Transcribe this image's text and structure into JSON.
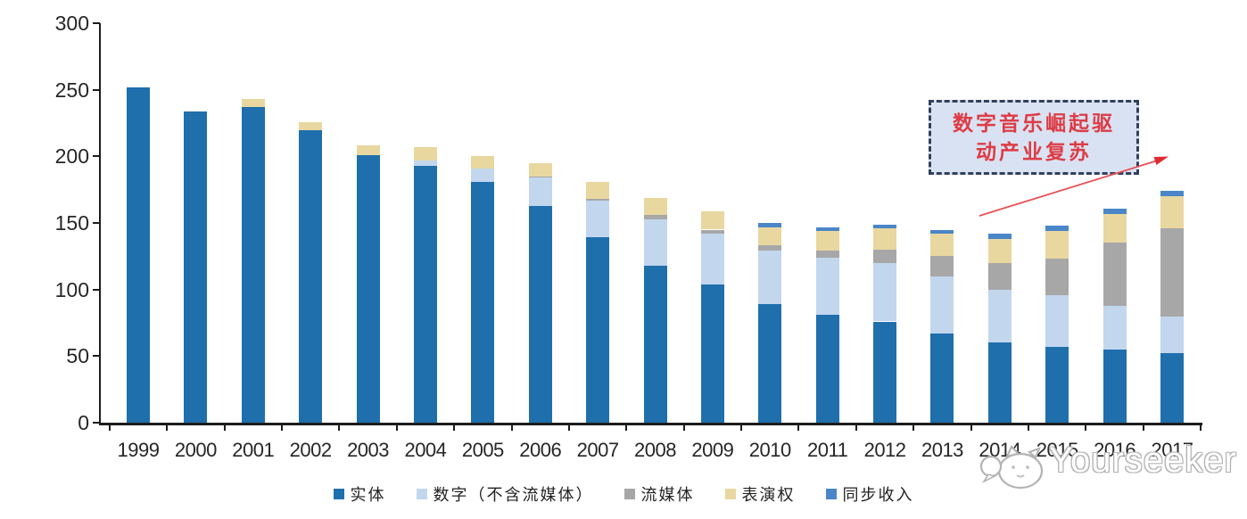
{
  "chart_data": {
    "type": "bar",
    "subtype": "stacked",
    "title": "",
    "xlabel": "",
    "ylabel": "",
    "categories": [
      "1999",
      "2000",
      "2001",
      "2002",
      "2003",
      "2004",
      "2005",
      "2006",
      "2007",
      "2008",
      "2009",
      "2010",
      "2011",
      "2012",
      "2013",
      "2014",
      "2015",
      "2016",
      "2017"
    ],
    "series": [
      {
        "name": "实体",
        "color": "#1f6fad",
        "values": [
          252,
          234,
          237,
          220,
          201,
          193,
          181,
          163,
          139,
          118,
          104,
          89,
          81,
          76,
          67,
          60,
          57,
          55,
          52
        ]
      },
      {
        "name": "数字（不含流媒体）",
        "color": "#c2d6ee",
        "values": [
          0,
          0,
          0,
          0,
          0,
          4,
          10,
          21,
          28,
          35,
          38,
          40,
          43,
          44,
          43,
          40,
          39,
          33,
          28
        ]
      },
      {
        "name": "流媒体",
        "color": "#a7a7a7",
        "values": [
          0,
          0,
          0,
          0,
          0,
          0,
          0,
          1,
          1,
          3,
          3,
          4,
          5,
          10,
          15,
          20,
          27,
          47,
          66
        ]
      },
      {
        "name": "表演权",
        "color": "#e9d7a0",
        "values": [
          0,
          0,
          6,
          6,
          7,
          10,
          9,
          10,
          13,
          13,
          14,
          14,
          15,
          16,
          17,
          18,
          21,
          22,
          24
        ]
      },
      {
        "name": "同步收入",
        "color": "#4a86c8",
        "values": [
          0,
          0,
          0,
          0,
          0,
          0,
          0,
          0,
          0,
          0,
          0,
          3,
          3,
          3,
          3,
          4,
          4,
          4,
          4
        ]
      }
    ],
    "ylim": [
      0,
      300
    ],
    "yticks": [
      0,
      50,
      100,
      150,
      200,
      250,
      300
    ],
    "grid": false,
    "legend_position": "bottom"
  },
  "annotation": {
    "line1": "数字音乐崛起驱",
    "line2": "动产业复苏",
    "text_color": "#dd3c45",
    "box_fill": "#d9e2f2",
    "box_border": "#33405c",
    "arrow_color": "#e85055"
  },
  "watermark": {
    "text": "Yourseeker"
  }
}
